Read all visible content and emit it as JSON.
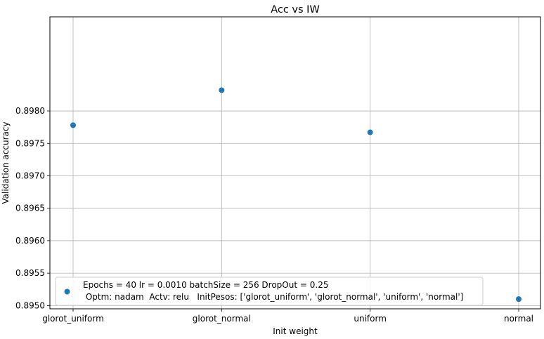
{
  "chart_data": {
    "type": "scatter",
    "title": "Acc vs IW",
    "xlabel": "Init weight",
    "ylabel": "Validation accuracy",
    "categories": [
      "glorot_uniform",
      "glorot_normal",
      "uniform",
      "normal"
    ],
    "series": [
      {
        "name": "Epochs = 40 lr = 0.0010 batchSize = 256 DropOut = 0.25\n Optm: nadam  Actv: relu   InitPesos: ['glorot_uniform', 'glorot_normal', 'uniform', 'normal']",
        "values": [
          0.89778,
          0.89832,
          0.89767,
          0.8951
        ],
        "color": "#1f77b4"
      }
    ],
    "ylim": [
      0.89495,
      0.89945
    ],
    "yticks": [
      "0.8950",
      "0.8955",
      "0.8960",
      "0.8965",
      "0.8970",
      "0.8975",
      "0.8980"
    ],
    "ytick_values": [
      0.895,
      0.8955,
      0.896,
      0.8965,
      0.897,
      0.8975,
      0.898
    ],
    "grid": true,
    "legend_position": "lower-left"
  },
  "legend": {
    "line1": "Epochs = 40 lr = 0.0010 batchSize = 256 DropOut = 0.25",
    "line2": " Optm: nadam  Actv: relu   InitPesos: ['glorot_uniform', 'glorot_normal', 'uniform', 'normal']"
  }
}
